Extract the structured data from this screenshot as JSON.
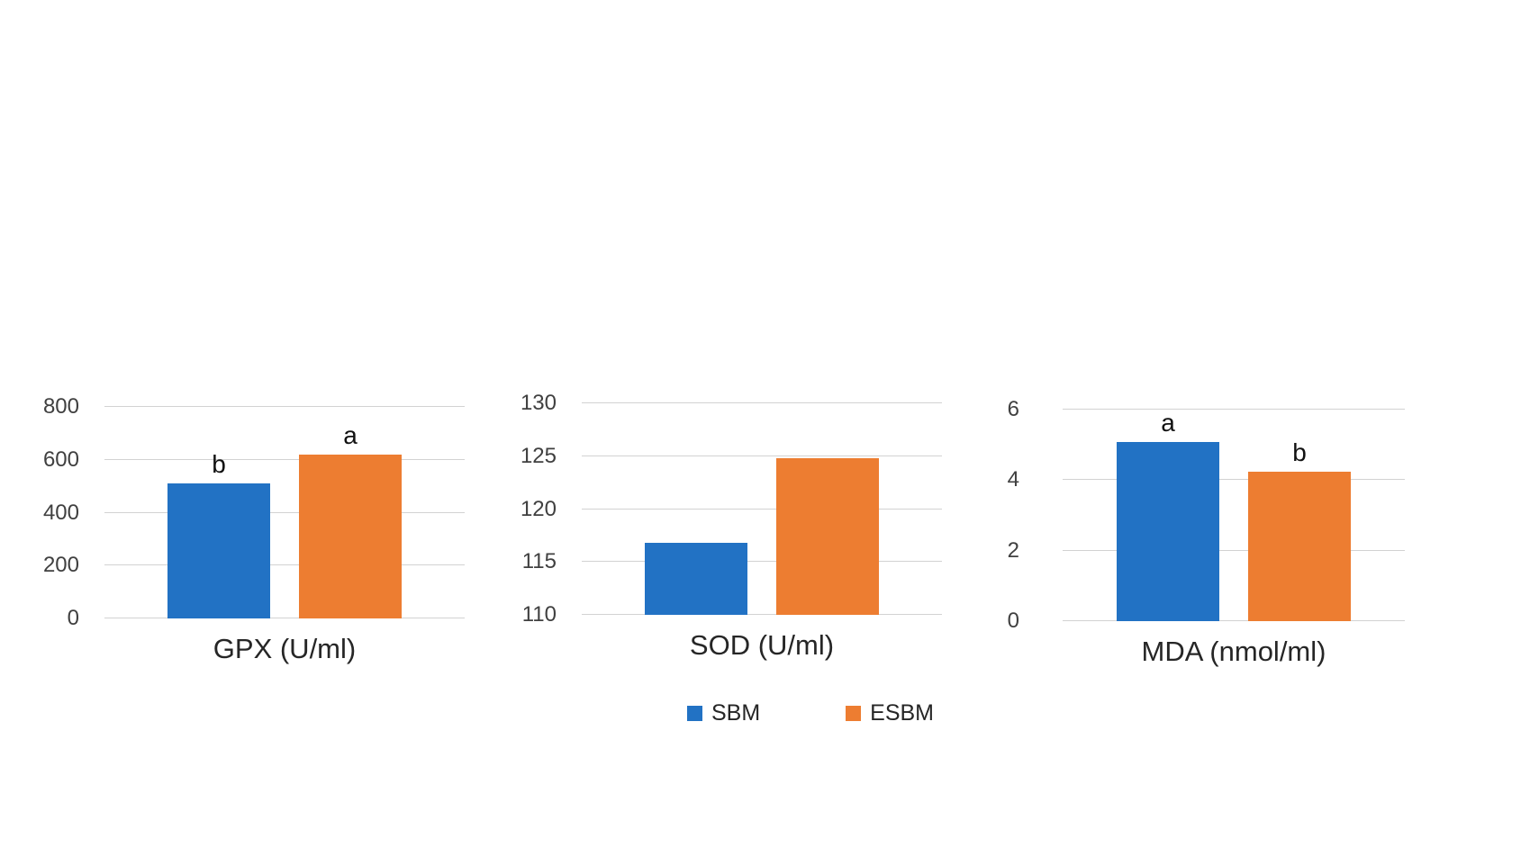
{
  "page": {
    "background_color": "#ffffff"
  },
  "colors": {
    "sbm_blue": "#2272C4",
    "esbm_orange": "#ED7D31",
    "gridline": "#d2d2d2",
    "tick_text": "#404040",
    "title_text": "#262626"
  },
  "chart_data": [
    {
      "type": "bar",
      "title": "GPX (U/ml)",
      "categories": [
        "SBM",
        "ESBM"
      ],
      "values": [
        510,
        620
      ],
      "bar_labels": [
        "b",
        "a"
      ],
      "colors": [
        "#2272C4",
        "#ED7D31"
      ],
      "ylim": [
        0,
        800
      ],
      "yticks": [
        0,
        200,
        400,
        600,
        800
      ],
      "grid": true
    },
    {
      "type": "bar",
      "title": "SOD (U/ml)",
      "categories": [
        "SBM",
        "ESBM"
      ],
      "values": [
        116.8,
        124.8
      ],
      "bar_labels": [
        "",
        ""
      ],
      "colors": [
        "#2272C4",
        "#ED7D31"
      ],
      "ylim": [
        110,
        130
      ],
      "yticks": [
        110,
        115,
        120,
        125,
        130
      ],
      "grid": true
    },
    {
      "type": "bar",
      "title": "MDA (nmol/ml)",
      "categories": [
        "SBM",
        "ESBM"
      ],
      "values": [
        5.2,
        4.25
      ],
      "bar_labels": [
        "a",
        "b"
      ],
      "colors": [
        "#2272C4",
        "#ED7D31"
      ],
      "ylim": [
        0,
        6
      ],
      "yticks": [
        0,
        2,
        4,
        6
      ],
      "grid": true
    }
  ],
  "legend": {
    "position": "bottom-center",
    "items": [
      {
        "label": "SBM",
        "color": "#2272C4"
      },
      {
        "label": "ESBM",
        "color": "#ED7D31"
      }
    ]
  }
}
